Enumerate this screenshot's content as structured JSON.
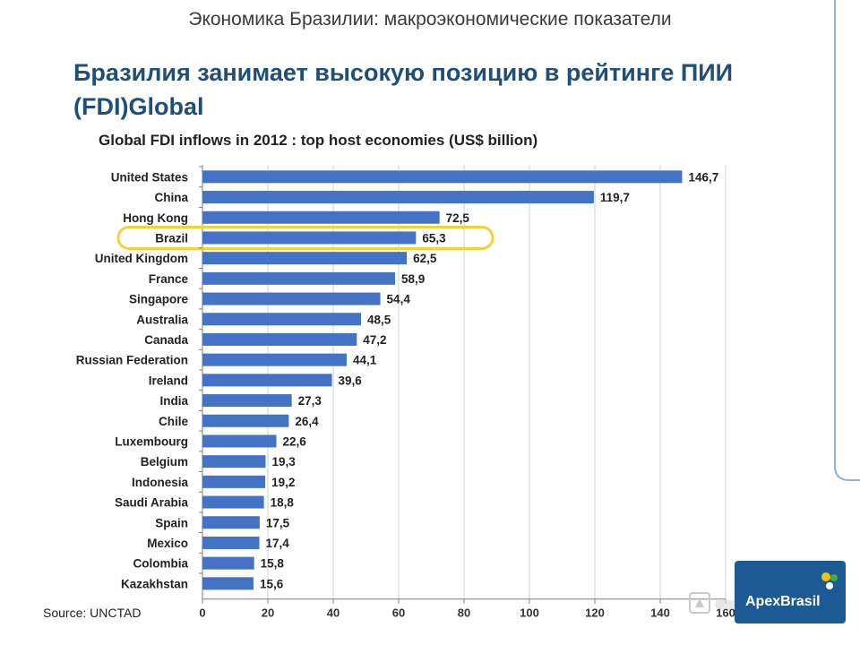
{
  "slide": {
    "title": "Экономика Бразилии: макроэкономические показатели",
    "heading": "Бразилия занимает высокую позицию в рейтинге ПИИ (FDI)Global",
    "source": "Source: UNCTAD",
    "logo": "ApexBrasil"
  },
  "colors": {
    "bar": "#4472c4",
    "highlight": "#f2d23a",
    "heading": "#1f4e79"
  },
  "chart_data": {
    "type": "bar",
    "orientation": "horizontal",
    "title": "Global FDI inflows in 2012 : top host economies (US$ billion)",
    "categories": [
      "United States",
      "China",
      "Hong Kong",
      "Brazil",
      "United Kingdom",
      "France",
      "Singapore",
      "Australia",
      "Canada",
      "Russian Federation",
      "Ireland",
      "India",
      "Chile",
      "Luxembourg",
      "Belgium",
      "Indonesia",
      "Saudi Arabia",
      "Spain",
      "Mexico",
      "Colombia",
      "Kazakhstan"
    ],
    "values": [
      146.7,
      119.7,
      72.5,
      65.3,
      62.5,
      58.9,
      54.4,
      48.5,
      47.2,
      44.1,
      39.6,
      27.3,
      26.4,
      22.6,
      19.3,
      19.2,
      18.8,
      17.5,
      17.4,
      15.8,
      15.6
    ],
    "value_labels": [
      "146,7",
      "119,7",
      "72,5",
      "65,3",
      "62,5",
      "58,9",
      "54,4",
      "48,5",
      "47,2",
      "44,1",
      "39,6",
      "27,3",
      "26,4",
      "22,6",
      "19,3",
      "19,2",
      "18,8",
      "17,5",
      "17,4",
      "15,8",
      "15,6"
    ],
    "xticks": [
      "0",
      "20",
      "40",
      "60",
      "80",
      "100",
      "120",
      "140",
      "160"
    ],
    "xlim": [
      0,
      160
    ],
    "highlighted": "Brazil",
    "grid": true
  }
}
